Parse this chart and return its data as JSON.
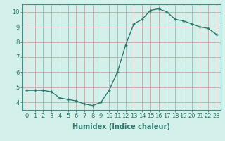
{
  "x": [
    0,
    1,
    2,
    3,
    4,
    5,
    6,
    7,
    8,
    9,
    10,
    11,
    12,
    13,
    14,
    15,
    16,
    17,
    18,
    19,
    20,
    21,
    22,
    23
  ],
  "y": [
    4.8,
    4.8,
    4.8,
    4.7,
    4.3,
    4.2,
    4.1,
    3.9,
    3.8,
    4.0,
    4.8,
    6.0,
    7.8,
    9.2,
    9.5,
    10.1,
    10.2,
    10.0,
    9.5,
    9.4,
    9.2,
    9.0,
    8.9,
    8.5
  ],
  "line_color": "#2d7a6e",
  "marker": "+",
  "marker_size": 3,
  "bg_color": "#d4f0eb",
  "grid_color": "#c4a8a8",
  "xlabel": "Humidex (Indice chaleur)",
  "ylabel": "",
  "xlim": [
    -0.5,
    23.5
  ],
  "ylim": [
    3.5,
    10.5
  ],
  "yticks": [
    4,
    5,
    6,
    7,
    8,
    9,
    10
  ],
  "xticks": [
    0,
    1,
    2,
    3,
    4,
    5,
    6,
    7,
    8,
    9,
    10,
    11,
    12,
    13,
    14,
    15,
    16,
    17,
    18,
    19,
    20,
    21,
    22,
    23
  ],
  "xlabel_fontsize": 7,
  "tick_fontsize": 6,
  "line_width": 1.0
}
